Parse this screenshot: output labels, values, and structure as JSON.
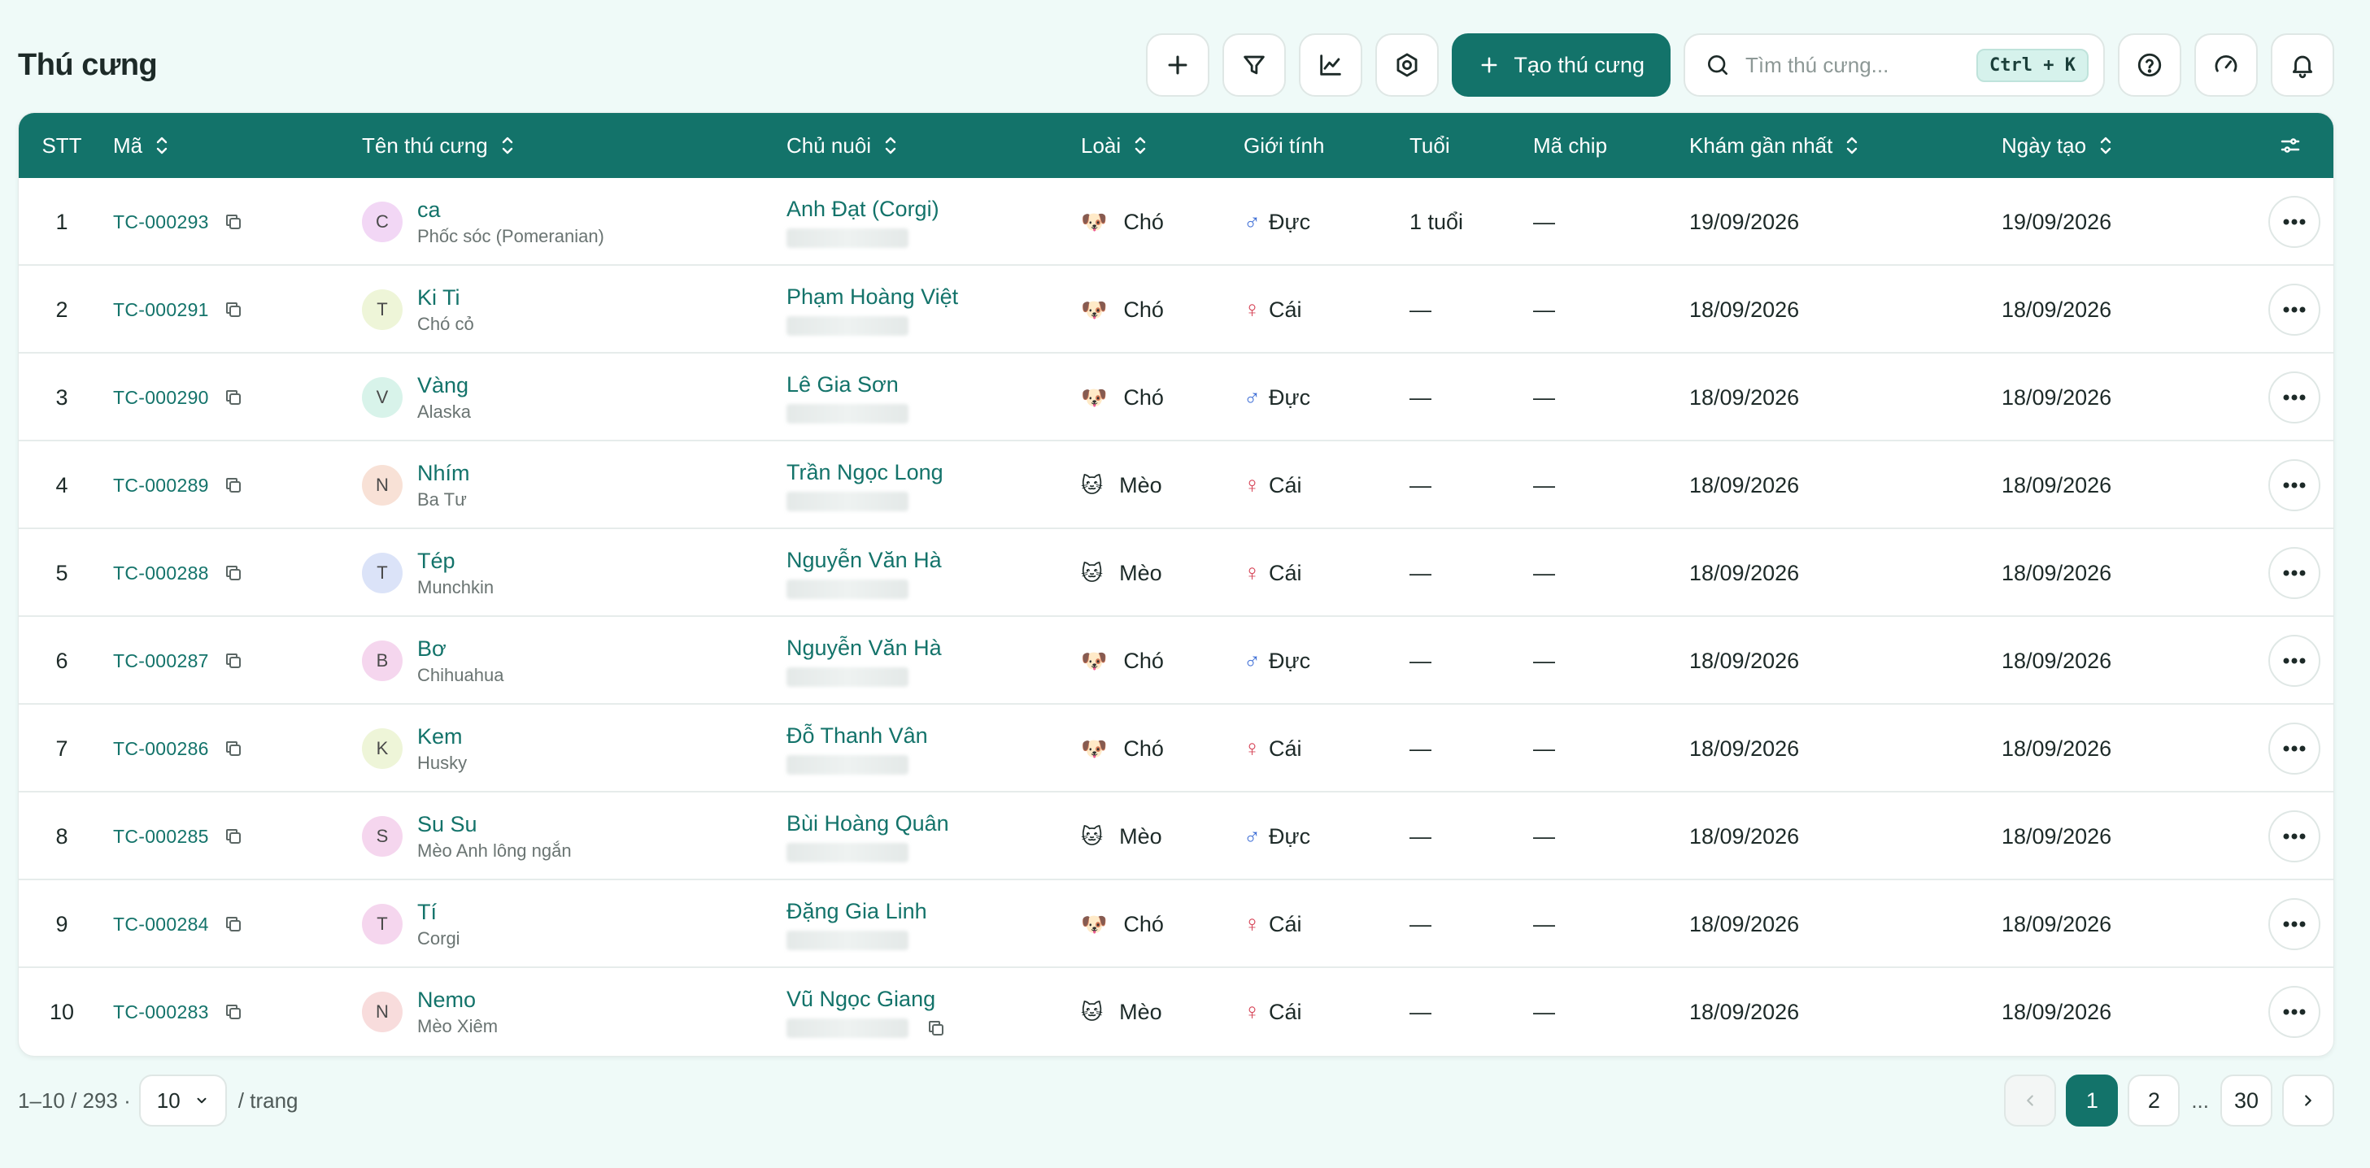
{
  "header": {
    "title": "Thú cưng",
    "create_label": "Tạo thú cưng",
    "search_placeholder": "Tìm thú cưng...",
    "search_shortcut": "Ctrl + K"
  },
  "table": {
    "columns": {
      "stt": "STT",
      "code": "Mã",
      "name": "Tên thú cưng",
      "owner": "Chủ nuôi",
      "species": "Loài",
      "gender": "Giới tính",
      "age": "Tuổi",
      "chip": "Mã chip",
      "last_exam": "Khám gần nhất",
      "created": "Ngày tạo"
    },
    "rows": [
      {
        "stt": "1",
        "code": "TC-000293",
        "initial": "C",
        "avatar_color": "#f2d7f5",
        "name": "ca",
        "breed": "Phốc sóc (Pomeranian)",
        "owner": "Anh Đạt (Corgi)",
        "species_icon": "🐶",
        "species": "Chó",
        "gender_symbol": "♂",
        "gender": "Đực",
        "gender_type": "male",
        "age": "1 tuổi",
        "chip": "—",
        "last_exam": "19/09/2026",
        "created": "19/09/2026"
      },
      {
        "stt": "2",
        "code": "TC-000291",
        "initial": "T",
        "avatar_color": "#eef5d8",
        "name": "Ki Ti",
        "breed": "Chó cỏ",
        "owner": "Phạm Hoàng Việt",
        "species_icon": "🐶",
        "species": "Chó",
        "gender_symbol": "♀",
        "gender": "Cái",
        "gender_type": "female",
        "age": "—",
        "chip": "—",
        "last_exam": "18/09/2026",
        "created": "18/09/2026"
      },
      {
        "stt": "3",
        "code": "TC-000290",
        "initial": "V",
        "avatar_color": "#d8f3ea",
        "name": "Vàng",
        "breed": "Alaska",
        "owner": "Lê Gia Sơn",
        "species_icon": "🐶",
        "species": "Chó",
        "gender_symbol": "♂",
        "gender": "Đực",
        "gender_type": "male",
        "age": "—",
        "chip": "—",
        "last_exam": "18/09/2026",
        "created": "18/09/2026"
      },
      {
        "stt": "4",
        "code": "TC-000289",
        "initial": "N",
        "avatar_color": "#f8e1d6",
        "name": "Nhím",
        "breed": "Ba Tư",
        "owner": "Trần Ngọc Long",
        "species_icon": "🐱",
        "species": "Mèo",
        "gender_symbol": "♀",
        "gender": "Cái",
        "gender_type": "female",
        "age": "—",
        "chip": "—",
        "last_exam": "18/09/2026",
        "created": "18/09/2026"
      },
      {
        "stt": "5",
        "code": "TC-000288",
        "initial": "T",
        "avatar_color": "#dbe3f8",
        "name": "Tép",
        "breed": "Munchkin",
        "owner": "Nguyễn Văn Hà",
        "species_icon": "🐱",
        "species": "Mèo",
        "gender_symbol": "♀",
        "gender": "Cái",
        "gender_type": "female",
        "age": "—",
        "chip": "—",
        "last_exam": "18/09/2026",
        "created": "18/09/2026"
      },
      {
        "stt": "6",
        "code": "TC-000287",
        "initial": "B",
        "avatar_color": "#f5d6ee",
        "name": "Bơ",
        "breed": "Chihuahua",
        "owner": "Nguyễn Văn Hà",
        "species_icon": "🐶",
        "species": "Chó",
        "gender_symbol": "♂",
        "gender": "Đực",
        "gender_type": "male",
        "age": "—",
        "chip": "—",
        "last_exam": "18/09/2026",
        "created": "18/09/2026"
      },
      {
        "stt": "7",
        "code": "TC-000286",
        "initial": "K",
        "avatar_color": "#eef5d8",
        "name": "Kem",
        "breed": "Husky",
        "owner": "Đỗ Thanh Vân",
        "species_icon": "🐶",
        "species": "Chó",
        "gender_symbol": "♀",
        "gender": "Cái",
        "gender_type": "female",
        "age": "—",
        "chip": "—",
        "last_exam": "18/09/2026",
        "created": "18/09/2026"
      },
      {
        "stt": "8",
        "code": "TC-000285",
        "initial": "S",
        "avatar_color": "#f5d6ee",
        "name": "Su Su",
        "breed": "Mèo Anh lông ngắn",
        "owner": "Bùi Hoàng Quân",
        "species_icon": "🐱",
        "species": "Mèo",
        "gender_symbol": "♂",
        "gender": "Đực",
        "gender_type": "male",
        "age": "—",
        "chip": "—",
        "last_exam": "18/09/2026",
        "created": "18/09/2026"
      },
      {
        "stt": "9",
        "code": "TC-000284",
        "initial": "T",
        "avatar_color": "#f5d6ee",
        "name": "Tí",
        "breed": "Corgi",
        "owner": "Đặng Gia Linh",
        "species_icon": "🐶",
        "species": "Chó",
        "gender_symbol": "♀",
        "gender": "Cái",
        "gender_type": "female",
        "age": "—",
        "chip": "—",
        "last_exam": "18/09/2026",
        "created": "18/09/2026"
      },
      {
        "stt": "10",
        "code": "TC-000283",
        "initial": "N",
        "avatar_color": "#f8dcdc",
        "name": "Nemo",
        "breed": "Mèo Xiêm",
        "owner": "Vũ Ngọc Giang",
        "species_icon": "🐱",
        "species": "Mèo",
        "gender_symbol": "♀",
        "gender": "Cái",
        "gender_type": "female",
        "age": "—",
        "chip": "—",
        "last_exam": "18/09/2026",
        "created": "18/09/2026"
      }
    ]
  },
  "footer": {
    "summary": "1–10 / 293 ·",
    "page_size": "10",
    "per_page_label": "/ trang",
    "pages": [
      "1",
      "2"
    ],
    "ellipsis": "...",
    "last_page": "30",
    "current_page": "1"
  },
  "colors": {
    "accent": "#13736a",
    "background": "#effaf8",
    "male": "#3f6fd6",
    "female": "#d64457"
  }
}
